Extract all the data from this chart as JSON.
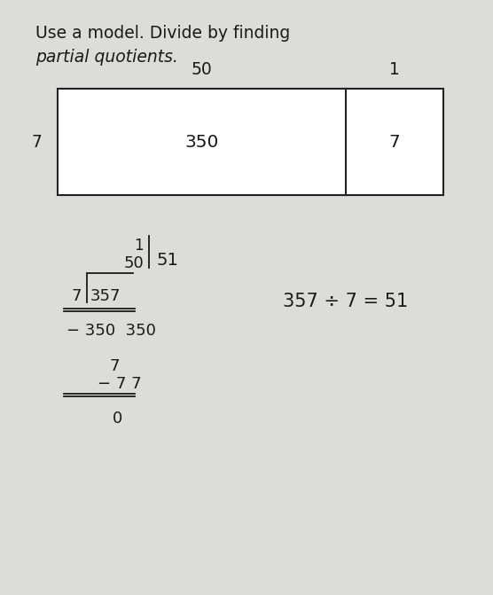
{
  "title_line1": "Use a model. Divide by finding",
  "title_line2": "partial quotients.",
  "bg_color": "#c8c8c8",
  "paper_color": "#e8e8e4",
  "text_color": "#1a1a1a",
  "box_facecolor": "white",
  "font_size_title": 13.5,
  "font_size_body": 13,
  "font_size_eq": 13,
  "left_label": "50",
  "right_label": "1",
  "row_label": "7",
  "left_value": "350",
  "right_value": "7",
  "equation": "357 ÷ 7 = 51",
  "partial1": "1",
  "partial2": "50",
  "brace_result": "51",
  "div_problem": "7)357",
  "step1_sub": "− 350",
  "step1_rem": "7",
  "step2_sub": "− 7",
  "step2_rem": "0"
}
